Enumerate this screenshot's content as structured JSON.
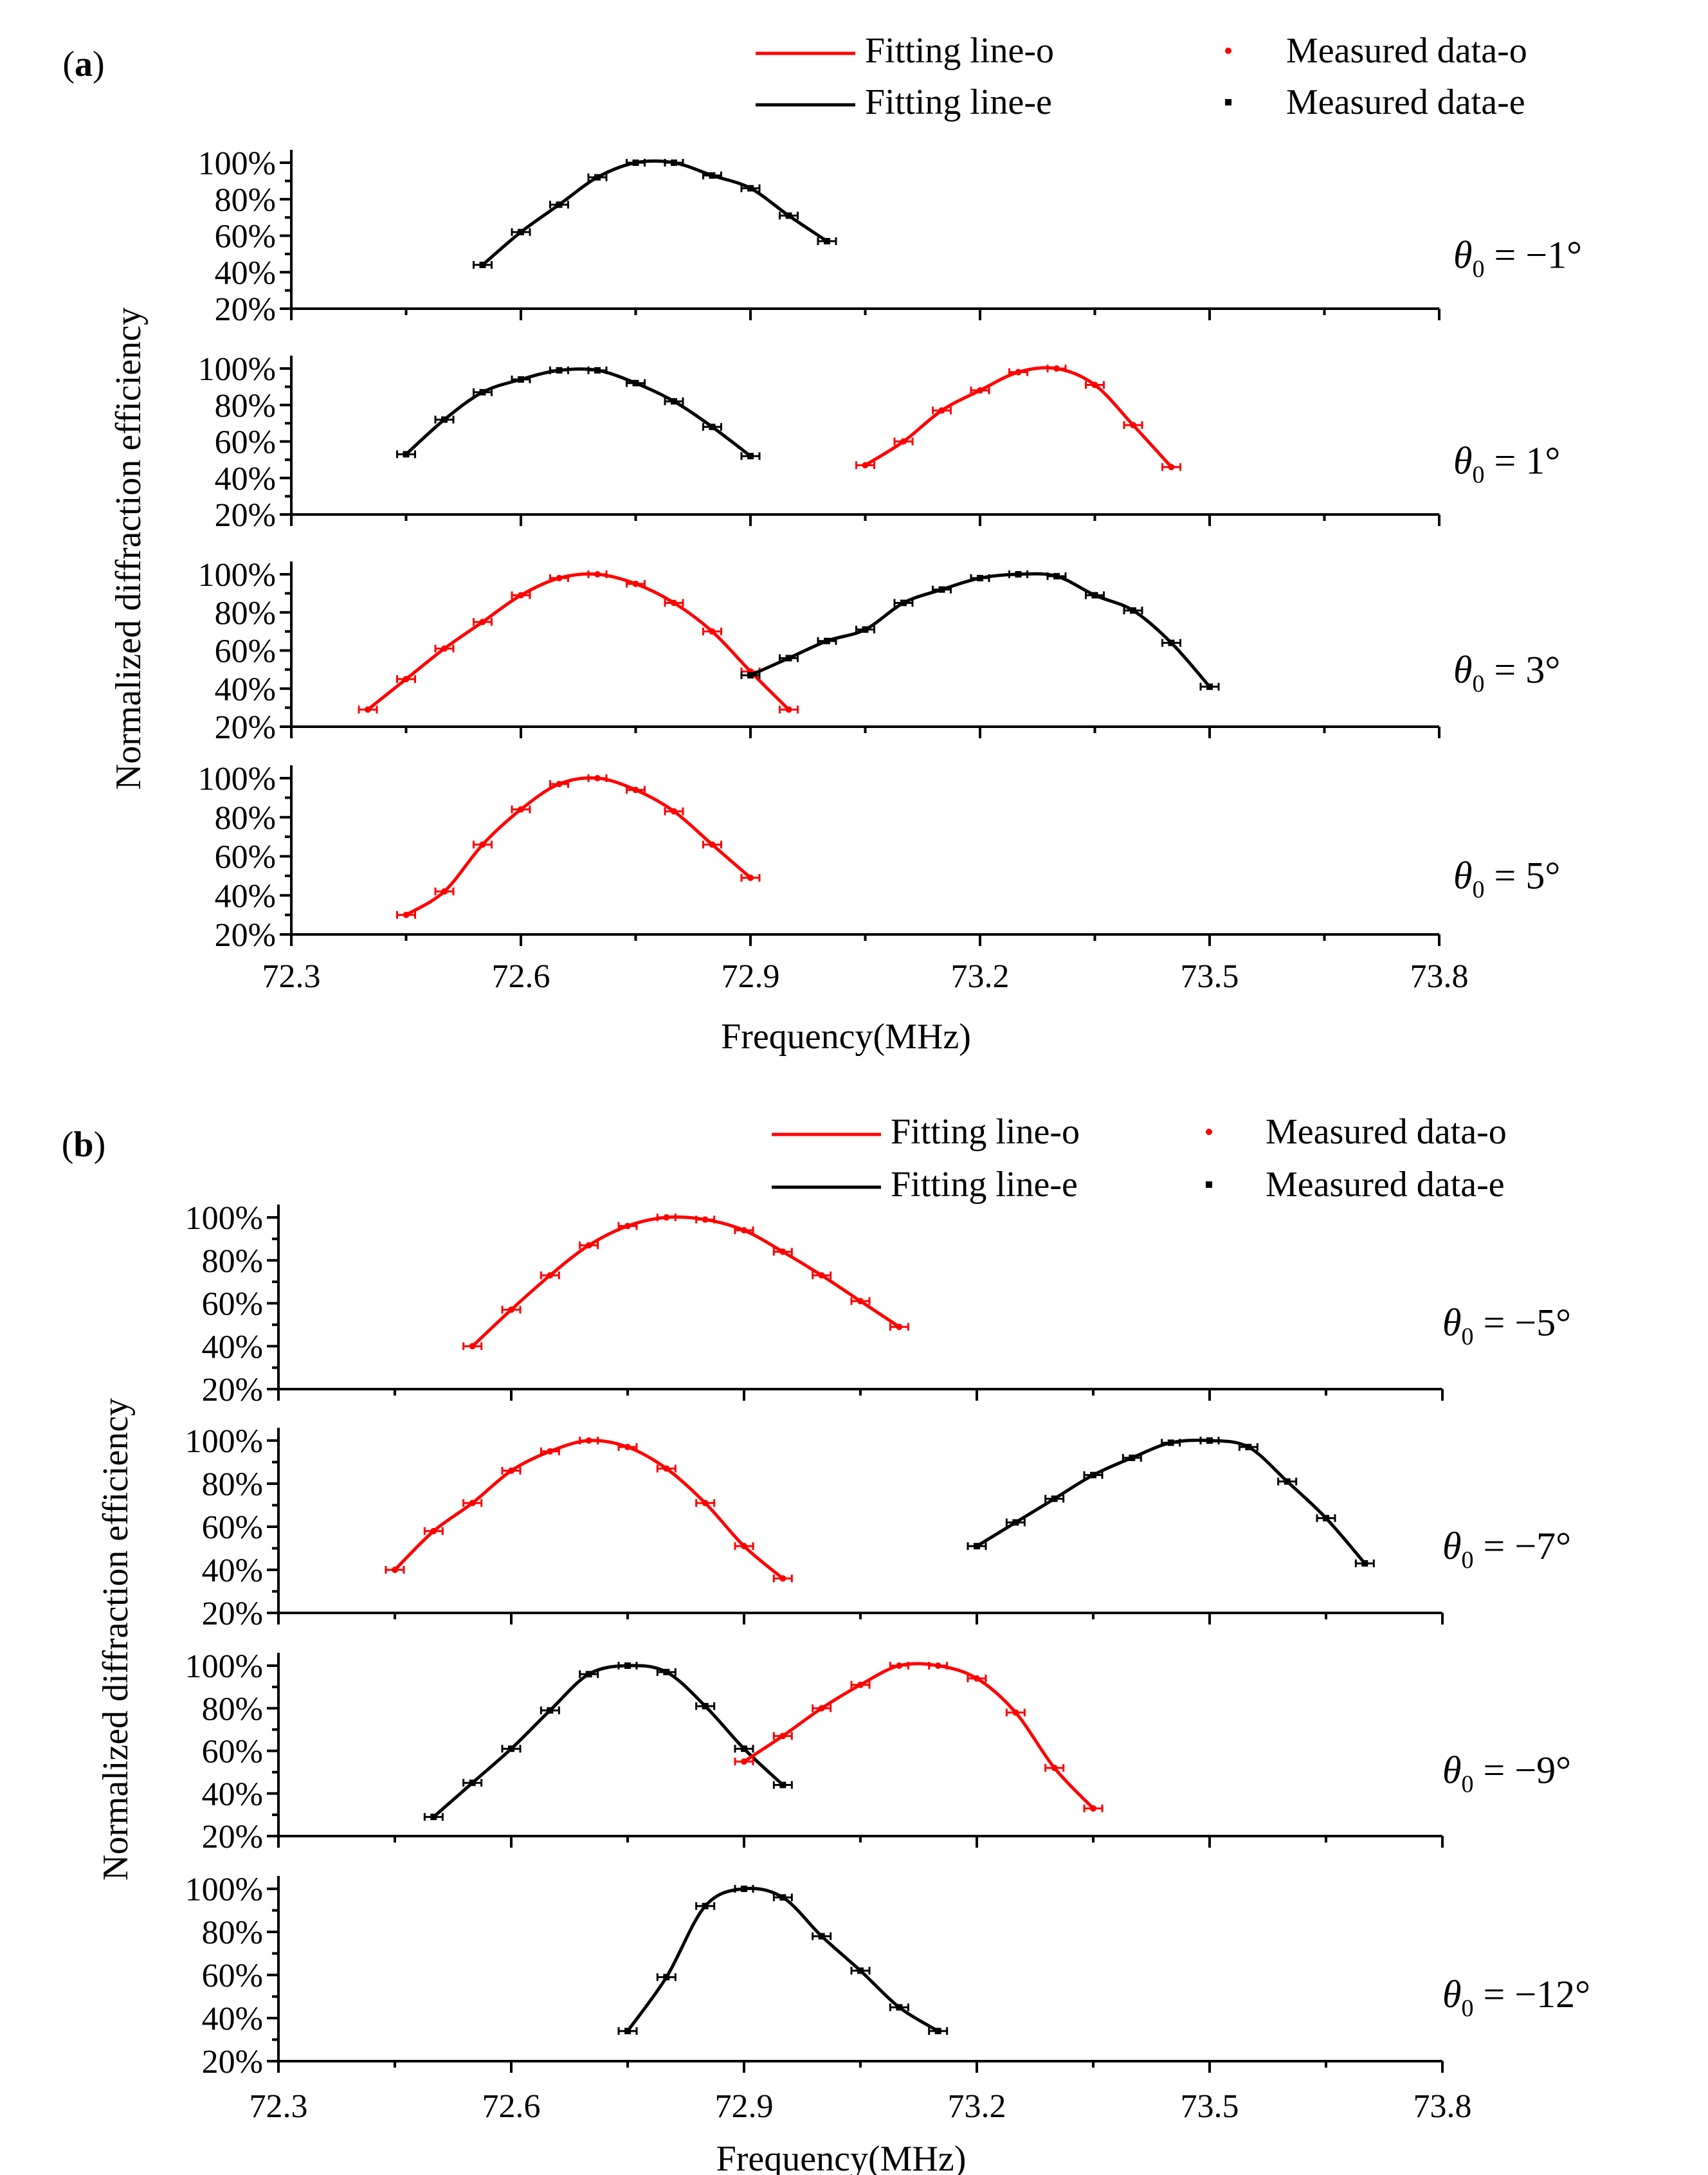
{
  "colors": {
    "o": "#ff0000",
    "e": "#000000"
  },
  "chart_data": [
    {
      "type": "line",
      "panel_label": "(a)",
      "xlabel": "Frequency(MHz)",
      "ylabel": "Normalized diffraction efficiency",
      "xlim": [
        72.3,
        73.8
      ],
      "ylim": [
        20,
        100
      ],
      "x_ticks": [
        "72.3",
        "72.6",
        "72.9",
        "73.2",
        "73.5",
        "73.8"
      ],
      "y_ticks": [
        "20%",
        "40%",
        "60%",
        "80%",
        "100%"
      ],
      "legend": {
        "fit_o": "Fitting line-o",
        "fit_e": "Fitting line-e",
        "meas_o": "Measured data-o",
        "meas_e": "Measured data-e"
      },
      "subplots": [
        {
          "theta_prefix": "θ",
          "theta_sub": "0",
          "theta_rest": " = −1°",
          "series": [
            {
              "name": "e",
              "x": [
                72.55,
                72.6,
                72.65,
                72.7,
                72.75,
                72.8,
                72.85,
                72.9,
                72.95,
                73.0
              ],
              "y": [
                44,
                62,
                77,
                92,
                100,
                100,
                93,
                86,
                71,
                57
              ]
            }
          ]
        },
        {
          "theta_prefix": "θ",
          "theta_sub": "0",
          "theta_rest": " = 1°",
          "series": [
            {
              "name": "e",
              "x": [
                72.45,
                72.5,
                72.55,
                72.6,
                72.65,
                72.7,
                72.75,
                72.8,
                72.85,
                72.9
              ],
              "y": [
                53,
                72,
                87,
                94,
                99,
                99,
                92,
                82,
                68,
                52
              ]
            },
            {
              "name": "o",
              "x": [
                73.05,
                73.1,
                73.15,
                73.2,
                73.25,
                73.3,
                73.35,
                73.4,
                73.45
              ],
              "y": [
                47,
                60,
                77,
                88,
                98,
                100,
                91,
                69,
                46
              ]
            }
          ]
        },
        {
          "theta_prefix": "θ",
          "theta_sub": "0",
          "theta_rest": " = 3°",
          "series": [
            {
              "name": "o",
              "x": [
                72.4,
                72.45,
                72.5,
                72.55,
                72.6,
                72.65,
                72.7,
                72.75,
                72.8,
                72.85,
                72.9,
                72.95
              ],
              "y": [
                29,
                45,
                61,
                75,
                89,
                98,
                100,
                95,
                85,
                70,
                49,
                29
              ]
            },
            {
              "name": "e",
              "x": [
                72.9,
                72.95,
                73.0,
                73.05,
                73.1,
                73.15,
                73.2,
                73.25,
                73.3,
                73.35,
                73.4,
                73.45,
                73.5
              ],
              "y": [
                47,
                56,
                65,
                71,
                85,
                92,
                98,
                100,
                99,
                89,
                81,
                64,
                41
              ]
            }
          ]
        },
        {
          "theta_prefix": "θ",
          "theta_sub": "0",
          "theta_rest": " = 5°",
          "series": [
            {
              "name": "o",
              "x": [
                72.45,
                72.5,
                72.55,
                72.6,
                72.65,
                72.7,
                72.75,
                72.8,
                72.85,
                72.9
              ],
              "y": [
                30,
                42,
                66,
                84,
                97,
                100,
                94,
                83,
                66,
                49
              ]
            }
          ]
        }
      ]
    },
    {
      "type": "line",
      "panel_label": "(b)",
      "xlabel": "Frequency(MHz)",
      "ylabel": "Normalized diffraction efficiency",
      "xlim": [
        72.3,
        73.8
      ],
      "ylim": [
        20,
        100
      ],
      "x_ticks": [
        "72.3",
        "72.6",
        "72.9",
        "73.2",
        "73.5",
        "73.8"
      ],
      "y_ticks": [
        "20%",
        "40%",
        "60%",
        "80%",
        "100%"
      ],
      "legend": {
        "fit_o": "Fitting line-o",
        "fit_e": "Fitting line-e",
        "meas_o": "Measured data-o",
        "meas_e": "Measured data-e"
      },
      "subplots": [
        {
          "theta_prefix": "θ",
          "theta_sub": "0",
          "theta_rest": " = −5°",
          "series": [
            {
              "name": "o",
              "x": [
                72.55,
                72.6,
                72.65,
                72.7,
                72.75,
                72.8,
                72.85,
                72.9,
                72.95,
                73.0,
                73.05,
                73.1
              ],
              "y": [
                40,
                57,
                73,
                87,
                96,
                100,
                99,
                94,
                84,
                73,
                61,
                49
              ]
            }
          ]
        },
        {
          "theta_prefix": "θ",
          "theta_sub": "0",
          "theta_rest": " = −7°",
          "series": [
            {
              "name": "o",
              "x": [
                72.45,
                72.5,
                72.55,
                72.6,
                72.65,
                72.7,
                72.75,
                72.8,
                72.85,
                72.9,
                72.95
              ],
              "y": [
                40,
                58,
                71,
                86,
                95,
                100,
                97,
                87,
                71,
                51,
                36
              ]
            },
            {
              "name": "e",
              "x": [
                73.2,
                73.25,
                73.3,
                73.35,
                73.4,
                73.45,
                73.5,
                73.55,
                73.6,
                73.65,
                73.7
              ],
              "y": [
                51,
                62,
                73,
                84,
                92,
                99,
                100,
                97,
                81,
                64,
                43
              ]
            }
          ]
        },
        {
          "theta_prefix": "θ",
          "theta_sub": "0",
          "theta_rest": " = −9°",
          "series": [
            {
              "name": "e",
              "x": [
                72.5,
                72.55,
                72.6,
                72.65,
                72.7,
                72.75,
                72.8,
                72.85,
                72.9,
                72.95
              ],
              "y": [
                29,
                45,
                61,
                79,
                96,
                100,
                97,
                81,
                61,
                44
              ]
            },
            {
              "name": "o",
              "x": [
                72.9,
                72.95,
                73.0,
                73.05,
                73.1,
                73.15,
                73.2,
                73.25,
                73.3,
                73.35
              ],
              "y": [
                55,
                67,
                80,
                91,
                100,
                100,
                94,
                78,
                52,
                33
              ]
            }
          ]
        },
        {
          "theta_prefix": "θ",
          "theta_sub": "0",
          "theta_rest": " = −12°",
          "series": [
            {
              "name": "e",
              "x": [
                72.75,
                72.8,
                72.85,
                72.9,
                72.95,
                73.0,
                73.05,
                73.1,
                73.15
              ],
              "y": [
                34,
                59,
                92,
                100,
                96,
                78,
                62,
                45,
                34
              ]
            }
          ]
        }
      ]
    }
  ]
}
